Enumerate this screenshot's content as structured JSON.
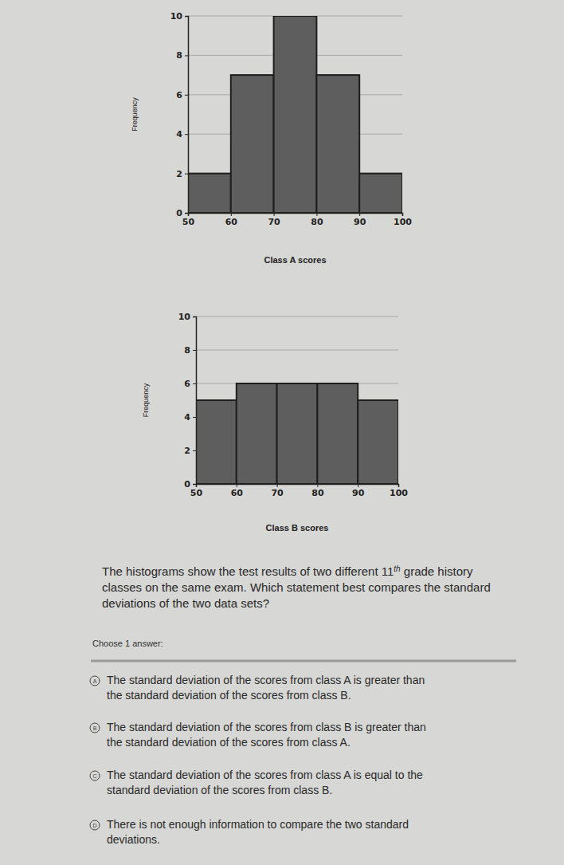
{
  "chart_data": [
    {
      "type": "histogram",
      "x_label": "Class A scores",
      "y_label": "Frequency",
      "bins": [
        50,
        60,
        70,
        80,
        90,
        100
      ],
      "values": [
        2,
        7,
        10,
        7,
        2
      ],
      "color": "#5e5e5e",
      "xlim": [
        50,
        100
      ],
      "xticks": [
        50,
        60,
        70,
        80,
        90,
        100
      ],
      "ylim": [
        0,
        10
      ],
      "yticks": [
        0,
        2,
        4,
        6,
        8,
        10
      ],
      "grid": true
    },
    {
      "type": "histogram",
      "x_label": "Class B scores",
      "y_label": "Frequency",
      "bins": [
        50,
        60,
        70,
        80,
        90,
        100
      ],
      "values": [
        5,
        6,
        6,
        6,
        5
      ],
      "color": "#5e5e5e",
      "xlim": [
        50,
        100
      ],
      "xticks": [
        50,
        60,
        70,
        80,
        90,
        100
      ],
      "ylim": [
        0,
        10
      ],
      "yticks": [
        0,
        2,
        4,
        6,
        8,
        10
      ],
      "grid": true
    }
  ],
  "question": [
    [
      {
        "text": "The histograms show the test results of two different "
      },
      {
        "text": "11"
      },
      {
        "text": "th",
        "sup": true
      },
      {
        "text": " grade history"
      }
    ],
    [
      {
        "text": "classes on the same exam. Which statement best compares the standard"
      }
    ],
    [
      {
        "text": "deviations of the two data sets?"
      }
    ]
  ],
  "prompt": "Choose 1 answer:",
  "choices": [
    {
      "letter": "A",
      "lines": [
        "The standard deviation of the scores from class A is greater than",
        "the standard deviation of the scores from class B."
      ]
    },
    {
      "letter": "B",
      "lines": [
        "The standard deviation of the scores from class B is greater than",
        "the standard deviation of the scores from class A."
      ]
    },
    {
      "letter": "C",
      "lines": [
        "The standard deviation of the scores from class A is equal to the",
        "standard deviation of the scores from class B."
      ]
    },
    {
      "letter": "D",
      "lines": [
        "There is not enough information to compare the two standard",
        "deviations."
      ]
    }
  ]
}
